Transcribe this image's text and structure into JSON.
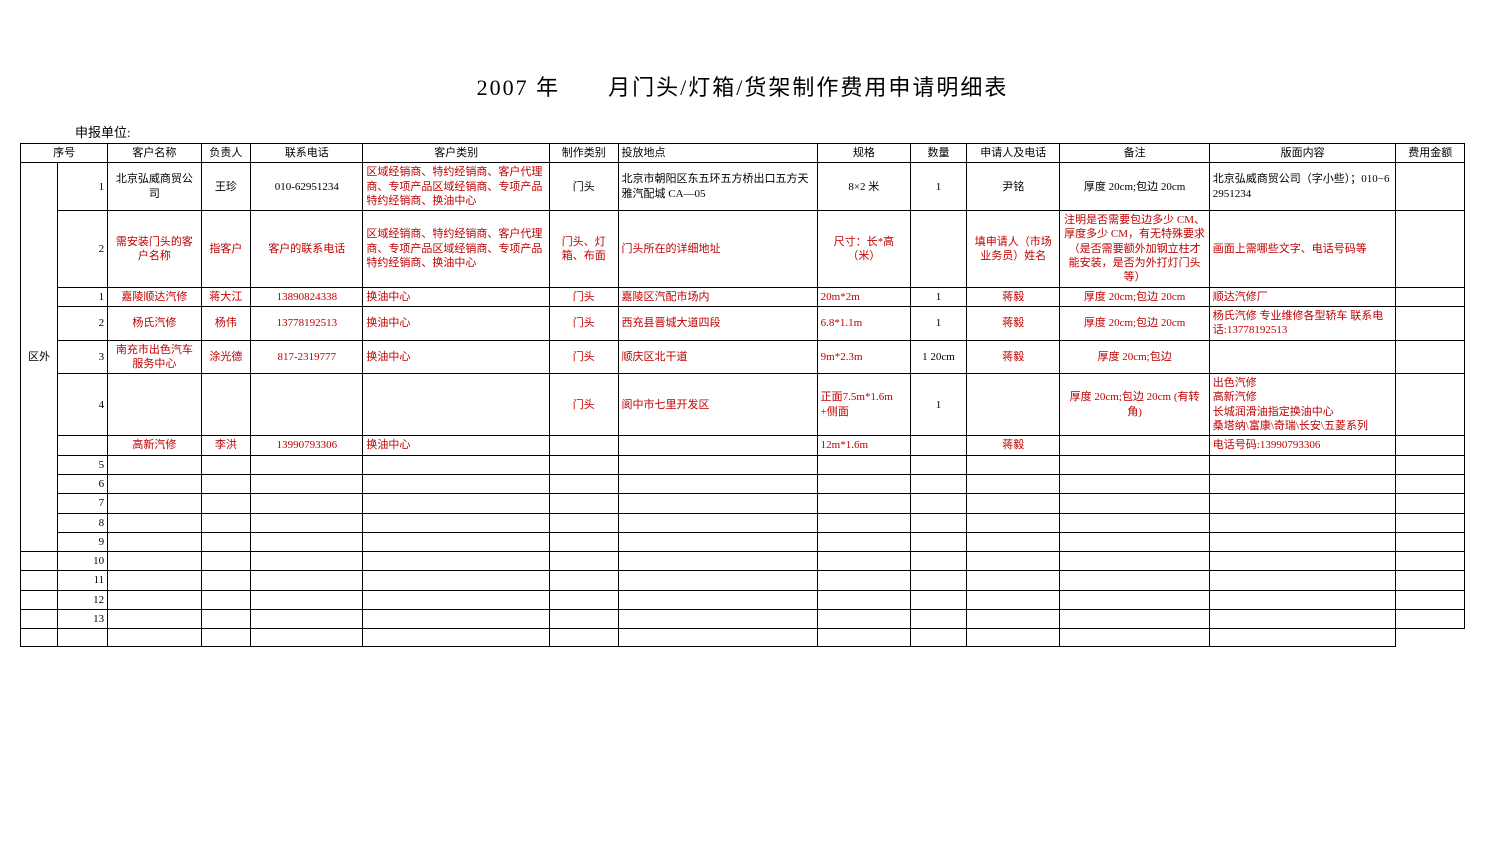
{
  "title": "2007 年　　月门头/灯箱/货架制作费用申请明细表",
  "sub_header": "申报单位:",
  "headers": {
    "seq": "序号",
    "name": "客户名称",
    "person": "负责人",
    "phone": "联系电话",
    "category": "客户类别",
    "type": "制作类别",
    "location": "投放地点",
    "spec": "规格",
    "qty": "数量",
    "applicant": "申请人及电话",
    "remark": "备注",
    "content": "版面内容",
    "cost": "费用金额"
  },
  "region_label": "区外",
  "rows": [
    {
      "seq": "1",
      "name": "北京弘威商贸公司",
      "person": "王珍",
      "phone": "010-62951234",
      "category": "区域经销商、特约经销商、客户代理商、专项产品区域经销商、专项产品特约经销商、换油中心",
      "type": "门头",
      "location": "北京市朝阳区东五环五方桥出口五方天雅汽配城 CA—05",
      "spec": "8×2 米",
      "qty": "1",
      "applicant": "尹铭",
      "remark": "厚度 20cm;包边 20cm",
      "content": "北京弘威商贸公司（字小些）；010−62951234",
      "red_cols": [
        "category"
      ]
    },
    {
      "seq": "2",
      "name": "需安装门头的客户名称",
      "person": "指客户",
      "phone": "客户的联系电话",
      "category": "区域经销商、特约经销商、客户代理商、专项产品区域经销商、专项产品特约经销商、换油中心",
      "type": "门头、灯箱、布面",
      "location": "门头所在的详细地址",
      "spec": "尺寸：长*高（米）",
      "qty": "",
      "applicant": "填申请人（市场业务员）姓名",
      "remark": "注明是否需要包边多少 CM、厚度多少 CM，有无特殊要求（是否需要额外加钢立柱才能安装，是否为外打灯门头等）",
      "content": "画面上需哪些文字、电话号码等",
      "red_cols": [
        "name",
        "person",
        "phone",
        "category",
        "type",
        "location",
        "spec",
        "applicant",
        "remark",
        "content"
      ]
    },
    {
      "seq": "1",
      "name": "嘉陵顺达汽修",
      "person": "蒋大江",
      "phone": "13890824338",
      "category": "换油中心",
      "type": "门头",
      "location": "嘉陵区汽配市场内",
      "spec": "20m*2m",
      "qty": "1",
      "applicant": "蒋毅",
      "remark": "厚度 20cm;包边 20cm",
      "content": "顺达汽修厂",
      "red_cols": [
        "name",
        "person",
        "phone",
        "category",
        "type",
        "location",
        "spec",
        "applicant",
        "remark",
        "content"
      ]
    },
    {
      "seq": "2",
      "name": "杨氏汽修",
      "person": "杨伟",
      "phone": "13778192513",
      "category": "换油中心",
      "type": "门头",
      "location": "西充县晋城大道四段",
      "spec": "6.8*1.1m",
      "qty": "1",
      "applicant": "蒋毅",
      "remark": "厚度 20cm;包边 20cm",
      "content": "杨氏汽修 专业维修各型轿车 联系电话:13778192513",
      "red_cols": [
        "name",
        "person",
        "phone",
        "category",
        "type",
        "location",
        "spec",
        "applicant",
        "remark",
        "content"
      ]
    },
    {
      "seq": "3",
      "name": "南充市出色汽车服务中心",
      "person": "涂光德",
      "phone": "817-2319777",
      "category": "换油中心",
      "type": "门头",
      "location": "顺庆区北干道",
      "spec": "9m*2.3m",
      "qty": "1 20cm",
      "applicant": "蒋毅",
      "remark": "厚度 20cm;包边",
      "content": "",
      "red_cols": [
        "name",
        "person",
        "phone",
        "category",
        "type",
        "location",
        "spec",
        "applicant",
        "remark"
      ]
    },
    {
      "seq": "4",
      "name": "",
      "person": "",
      "phone": "",
      "category": "",
      "type": "门头",
      "location": "阆中市七里开发区",
      "spec": "正面7.5m*1.6m+侧面",
      "qty": "1",
      "applicant": "",
      "remark": "厚度 20cm;包边 20cm (有转角)",
      "content": "出色汽修\n高新汽修\n长城润滑油指定换油中心\n桑塔纳\\富康\\奇瑞\\长安\\五菱系列",
      "red_cols": [
        "type",
        "location",
        "spec",
        "remark",
        "content"
      ]
    },
    {
      "seq": "",
      "name": "高新汽修",
      "person": "李洪",
      "phone": "13990793306",
      "category": "换油中心",
      "type": "",
      "location": "",
      "spec": "12m*1.6m",
      "qty": "",
      "applicant": "蒋毅",
      "remark": "",
      "content": "电话号码:13990793306",
      "red_cols": [
        "name",
        "person",
        "phone",
        "category",
        "spec",
        "applicant",
        "content"
      ]
    }
  ],
  "empty_seqs": [
    "5",
    "6",
    "7",
    "8",
    "9",
    "10",
    "11",
    "12",
    "13",
    ""
  ]
}
